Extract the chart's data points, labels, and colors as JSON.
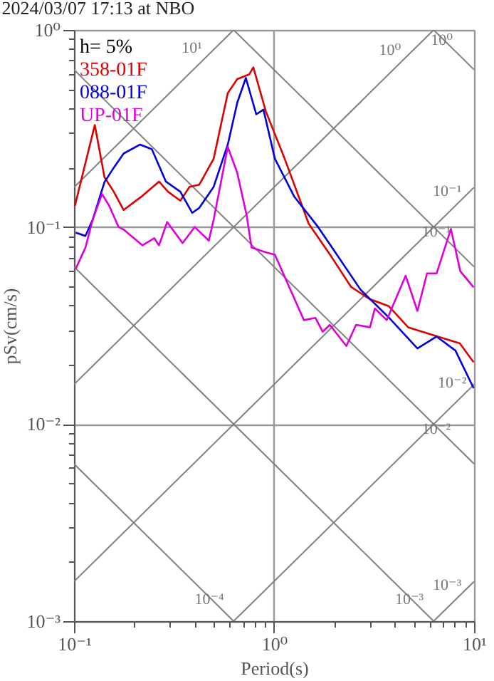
{
  "chart_data": {
    "type": "line",
    "title": "2024/03/07 17:13 at NBO",
    "xlabel": "Period(s)",
    "ylabel": "pSv(cm/s)",
    "log": "xy",
    "grid": true,
    "legend": "top left",
    "marker": "none",
    "line_style": "solid",
    "xlim": [
      0.1,
      10
    ],
    "ylim": [
      0.001,
      1
    ],
    "xticks": [
      {
        "value": 0.1,
        "label": "10⁻¹"
      },
      {
        "value": 0.2,
        "label": null
      },
      {
        "value": 0.3,
        "label": null
      },
      {
        "value": 0.4,
        "label": null
      },
      {
        "value": 0.5,
        "label": null
      },
      {
        "value": 0.6,
        "label": null
      },
      {
        "value": 0.7,
        "label": null
      },
      {
        "value": 0.8,
        "label": null
      },
      {
        "value": 0.9,
        "label": null
      },
      {
        "value": 1,
        "label": "10⁰"
      },
      {
        "value": 2,
        "label": null
      },
      {
        "value": 3,
        "label": null
      },
      {
        "value": 4,
        "label": null
      },
      {
        "value": 5,
        "label": null
      },
      {
        "value": 6,
        "label": null
      },
      {
        "value": 7,
        "label": null
      },
      {
        "value": 8,
        "label": null
      },
      {
        "value": 9,
        "label": null
      },
      {
        "value": 10,
        "label": "10¹"
      }
    ],
    "yticks": [
      {
        "value": 0.001,
        "label": "10⁻³"
      },
      {
        "value": 0.002,
        "label": null
      },
      {
        "value": 0.003,
        "label": null
      },
      {
        "value": 0.004,
        "label": null
      },
      {
        "value": 0.005,
        "label": null
      },
      {
        "value": 0.006,
        "label": null
      },
      {
        "value": 0.007,
        "label": null
      },
      {
        "value": 0.008,
        "label": null
      },
      {
        "value": 0.009,
        "label": null
      },
      {
        "value": 0.01,
        "label": "10⁻²"
      },
      {
        "value": 0.02,
        "label": null
      },
      {
        "value": 0.03,
        "label": null
      },
      {
        "value": 0.04,
        "label": null
      },
      {
        "value": 0.05,
        "label": null
      },
      {
        "value": 0.06,
        "label": null
      },
      {
        "value": 0.07,
        "label": null
      },
      {
        "value": 0.08,
        "label": null
      },
      {
        "value": 0.09,
        "label": null
      },
      {
        "value": 0.1,
        "label": "10⁻¹"
      },
      {
        "value": 0.2,
        "label": null
      },
      {
        "value": 0.3,
        "label": null
      },
      {
        "value": 0.4,
        "label": null
      },
      {
        "value": 0.5,
        "label": null
      },
      {
        "value": 0.6,
        "label": null
      },
      {
        "value": 0.7,
        "label": null
      },
      {
        "value": 0.8,
        "label": null
      },
      {
        "value": 0.9,
        "label": null
      },
      {
        "value": 1,
        "label": "10⁰"
      }
    ],
    "annotations": [
      "h= 5%",
      {
        "text": "10¹",
        "x": 0.45,
        "y": 0.716
      },
      {
        "text": "10⁰",
        "x": 4.4,
        "y": 0.7
      },
      {
        "text": "10⁰",
        "x": 8.0,
        "y": 0.785
      },
      {
        "text": "10⁻¹",
        "x": 8.5,
        "y": 0.135
      },
      {
        "text": "10⁻¹",
        "x": 7.5,
        "y": 0.0838
      },
      {
        "text": "10⁻²",
        "x": 9.0,
        "y": 0.0143
      },
      {
        "text": "10⁻²",
        "x": 7.5,
        "y": 0.00838
      },
      {
        "text": "10⁻³",
        "x": 5.5,
        "y": 0.00114
      },
      {
        "text": "10⁻³",
        "x": 8.5,
        "y": 0.00135
      },
      {
        "text": "10⁻⁴",
        "x": 0.55,
        "y": 0.00114
      }
    ],
    "series": [
      {
        "type": "line",
        "color": "#808080",
        "x": [
          6.28,
          10
        ],
        "values": [
          1,
          0.628
        ]
      },
      {
        "type": "line",
        "color": "#808080",
        "x": [
          0.628,
          10
        ],
        "values": [
          1,
          0.0628
        ]
      },
      {
        "type": "line",
        "color": "#808080",
        "x": [
          0.1,
          10
        ],
        "values": [
          0.628,
          0.00628
        ]
      },
      {
        "type": "line",
        "color": "#808080",
        "x": [
          0.1,
          6.28
        ],
        "values": [
          0.0628,
          0.001
        ]
      },
      {
        "type": "line",
        "color": "#808080",
        "x": [
          0.1,
          0.628
        ],
        "values": [
          0.00628,
          0.001
        ]
      },
      {
        "type": "line",
        "color": "#808080",
        "x": [
          0.1,
          0.628
        ],
        "values": [
          0.159,
          1
        ]
      },
      {
        "type": "line",
        "color": "#808080",
        "x": [
          0.1,
          6.28
        ],
        "values": [
          0.0159,
          1
        ]
      },
      {
        "type": "line",
        "color": "#808080",
        "x": [
          0.1,
          10
        ],
        "values": [
          0.00159,
          0.159
        ]
      },
      {
        "type": "line",
        "color": "#808080",
        "x": [
          0.628,
          10
        ],
        "values": [
          0.001,
          0.0159
        ]
      },
      {
        "type": "line",
        "color": "#808080",
        "x": [
          6.28,
          10
        ],
        "values": [
          0.001,
          0.00159
        ]
      },
      {
        "name": "358-01F",
        "color": "#dd0000",
        "x": [
          0.101,
          0.127,
          0.142,
          0.158,
          0.177,
          0.22,
          0.266,
          0.295,
          0.34,
          0.378,
          0.423,
          0.499,
          0.587,
          0.655,
          0.75,
          0.788,
          0.91,
          1.13,
          1.49,
          1.94,
          2.43,
          3.02,
          3.74,
          4.68,
          6.5,
          8.49,
          9.95
        ],
        "values": [
          0.128,
          0.329,
          0.179,
          0.151,
          0.122,
          0.144,
          0.17,
          0.151,
          0.136,
          0.16,
          0.164,
          0.222,
          0.478,
          0.563,
          0.594,
          0.645,
          0.386,
          0.222,
          0.104,
          0.0704,
          0.0496,
          0.043,
          0.0397,
          0.031,
          0.0279,
          0.0257,
          0.0206
        ]
      },
      {
        "name": "088-01F",
        "color": "#0000dd",
        "x": [
          0.102,
          0.114,
          0.124,
          0.142,
          0.158,
          0.177,
          0.214,
          0.245,
          0.288,
          0.34,
          0.39,
          0.423,
          0.499,
          0.587,
          0.655,
          0.723,
          0.815,
          0.885,
          1.01,
          1.26,
          1.66,
          1.95,
          2.71,
          3.76,
          5.21,
          6.5,
          8.07,
          9.95
        ],
        "values": [
          0.0937,
          0.09,
          0.109,
          0.169,
          0.2,
          0.236,
          0.262,
          0.248,
          0.17,
          0.151,
          0.118,
          0.125,
          0.16,
          0.262,
          0.428,
          0.57,
          0.373,
          0.394,
          0.222,
          0.143,
          0.1,
          0.0786,
          0.048,
          0.0346,
          0.0242,
          0.0278,
          0.0236,
          0.0152
        ]
      },
      {
        "name": "UP-01F",
        "color": "#dd00dd",
        "x": [
          0.102,
          0.114,
          0.124,
          0.138,
          0.15,
          0.167,
          0.177,
          0.22,
          0.252,
          0.266,
          0.292,
          0.349,
          0.401,
          0.472,
          0.499,
          0.587,
          0.655,
          0.729,
          0.772,
          0.91,
          1.01,
          1.41,
          1.61,
          1.75,
          1.9,
          2.3,
          2.57,
          3.02,
          3.19,
          3.66,
          4.55,
          5.21,
          5.82,
          6.5,
          7.66,
          8.53,
          9.95
        ],
        "values": [
          0.0614,
          0.0786,
          0.109,
          0.147,
          0.128,
          0.1,
          0.097,
          0.0807,
          0.0877,
          0.0807,
          0.106,
          0.0829,
          0.1,
          0.0853,
          0.109,
          0.255,
          0.188,
          0.115,
          0.0786,
          0.0744,
          0.0724,
          0.0337,
          0.0346,
          0.0294,
          0.0319,
          0.0249,
          0.0319,
          0.031,
          0.0386,
          0.0337,
          0.0566,
          0.0375,
          0.0582,
          0.0582,
          0.0977,
          0.0597,
          0.0494
        ]
      }
    ]
  }
}
